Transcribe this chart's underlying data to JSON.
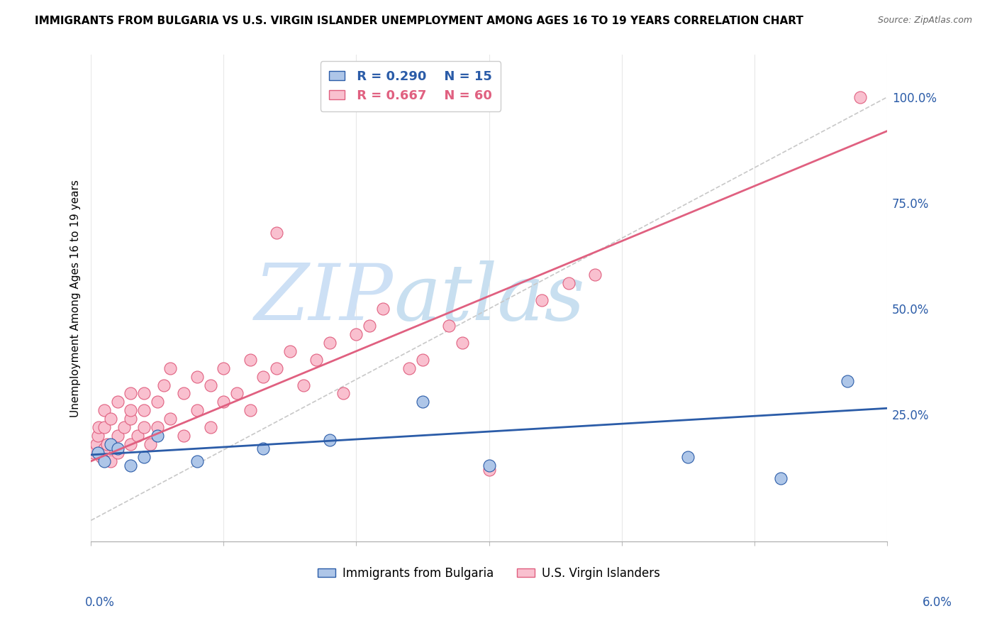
{
  "title": "IMMIGRANTS FROM BULGARIA VS U.S. VIRGIN ISLANDER UNEMPLOYMENT AMONG AGES 16 TO 19 YEARS CORRELATION CHART",
  "source": "Source: ZipAtlas.com",
  "ylabel": "Unemployment Among Ages 16 to 19 years",
  "x_min": 0.0,
  "x_max": 0.06,
  "y_min": -0.05,
  "y_max": 1.1,
  "right_yticks": [
    0.0,
    0.25,
    0.5,
    0.75,
    1.0
  ],
  "right_yticklabels": [
    "",
    "25.0%",
    "50.0%",
    "75.0%",
    "100.0%"
  ],
  "legend_blue_r": "R = 0.290",
  "legend_blue_n": "N = 15",
  "legend_pink_r": "R = 0.667",
  "legend_pink_n": "N = 60",
  "legend_label_blue": "Immigrants from Bulgaria",
  "legend_label_pink": "U.S. Virgin Islanders",
  "blue_scatter_x": [
    0.0005,
    0.001,
    0.0015,
    0.002,
    0.003,
    0.004,
    0.005,
    0.008,
    0.013,
    0.018,
    0.025,
    0.03,
    0.045,
    0.052,
    0.057
  ],
  "blue_scatter_y": [
    0.16,
    0.14,
    0.18,
    0.17,
    0.13,
    0.15,
    0.2,
    0.14,
    0.17,
    0.19,
    0.28,
    0.13,
    0.15,
    0.1,
    0.33
  ],
  "pink_scatter_x": [
    0.0002,
    0.0004,
    0.0005,
    0.0006,
    0.0008,
    0.001,
    0.001,
    0.001,
    0.0012,
    0.0015,
    0.0015,
    0.002,
    0.002,
    0.002,
    0.0025,
    0.003,
    0.003,
    0.003,
    0.003,
    0.0035,
    0.004,
    0.004,
    0.004,
    0.0045,
    0.005,
    0.005,
    0.0055,
    0.006,
    0.006,
    0.007,
    0.007,
    0.008,
    0.008,
    0.009,
    0.009,
    0.01,
    0.01,
    0.011,
    0.012,
    0.012,
    0.013,
    0.014,
    0.015,
    0.016,
    0.017,
    0.018,
    0.019,
    0.02,
    0.021,
    0.022,
    0.024,
    0.025,
    0.027,
    0.028,
    0.03,
    0.034,
    0.036,
    0.038,
    0.014,
    0.058
  ],
  "pink_scatter_y": [
    0.16,
    0.18,
    0.2,
    0.22,
    0.15,
    0.17,
    0.22,
    0.26,
    0.18,
    0.14,
    0.24,
    0.16,
    0.2,
    0.28,
    0.22,
    0.18,
    0.24,
    0.26,
    0.3,
    0.2,
    0.22,
    0.26,
    0.3,
    0.18,
    0.22,
    0.28,
    0.32,
    0.24,
    0.36,
    0.2,
    0.3,
    0.26,
    0.34,
    0.22,
    0.32,
    0.28,
    0.36,
    0.3,
    0.38,
    0.26,
    0.34,
    0.36,
    0.4,
    0.32,
    0.38,
    0.42,
    0.3,
    0.44,
    0.46,
    0.5,
    0.36,
    0.38,
    0.46,
    0.42,
    0.12,
    0.52,
    0.56,
    0.58,
    0.68,
    1.0
  ],
  "blue_color": "#aec6e8",
  "blue_line_color": "#2b5ca8",
  "pink_color": "#f9c0cf",
  "pink_line_color": "#e06080",
  "trend_line_dashed_color": "#c8c8c8",
  "watermark_zip_color": "#cde0f5",
  "watermark_atlas_color": "#c8dff0",
  "background_color": "#ffffff",
  "grid_color": "#e8e8e8",
  "blue_trend_y0": 0.155,
  "blue_trend_y1": 0.265,
  "pink_trend_y0": 0.14,
  "pink_trend_y1": 0.92
}
